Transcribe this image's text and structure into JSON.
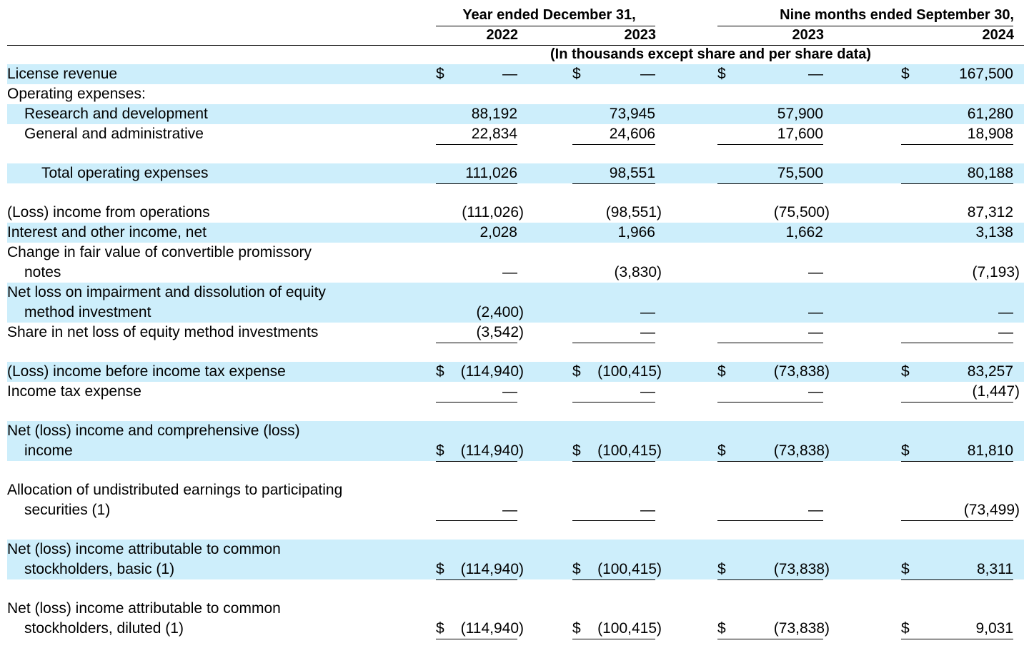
{
  "header": {
    "year_group": "Year ended December 31,",
    "nine_group": "Nine months ended September 30,",
    "years": [
      "2022",
      "2023",
      "2023",
      "2024"
    ],
    "units": "(In thousands except share and per share data)"
  },
  "rows": [
    {
      "lines": [
        "License revenue"
      ],
      "values": [
        [
          "$",
          "—"
        ],
        [
          "$",
          "—"
        ],
        [
          "$",
          "—"
        ],
        [
          "$",
          "167,500"
        ]
      ]
    },
    {
      "lines": [
        "Operating expenses:"
      ],
      "values": [
        [
          "",
          ""
        ],
        [
          "",
          ""
        ],
        [
          "",
          ""
        ],
        [
          "",
          ""
        ]
      ]
    },
    {
      "lines": [
        "Research and development"
      ],
      "values": [
        [
          "",
          "88,192"
        ],
        [
          "",
          "73,945"
        ],
        [
          "",
          "57,900"
        ],
        [
          "",
          "61,280"
        ]
      ]
    },
    {
      "lines": [
        "General and administrative"
      ],
      "values": [
        [
          "",
          "22,834"
        ],
        [
          "",
          "24,606"
        ],
        [
          "",
          "17,600"
        ],
        [
          "",
          "18,908"
        ]
      ]
    },
    {
      "lines": [
        "Total operating expenses"
      ],
      "values": [
        [
          "",
          "111,026"
        ],
        [
          "",
          "98,551"
        ],
        [
          "",
          "75,500"
        ],
        [
          "",
          "80,188"
        ]
      ]
    },
    {
      "lines": [
        "(Loss) income from operations"
      ],
      "values": [
        [
          "",
          "(111,026)"
        ],
        [
          "",
          "(98,551)"
        ],
        [
          "",
          "(75,500)"
        ],
        [
          "",
          "87,312"
        ]
      ]
    },
    {
      "lines": [
        "Interest and other income, net"
      ],
      "values": [
        [
          "",
          "2,028"
        ],
        [
          "",
          "1,966"
        ],
        [
          "",
          "1,662"
        ],
        [
          "",
          "3,138"
        ]
      ]
    },
    {
      "lines": [
        "Change in fair value of convertible promissory",
        "notes"
      ],
      "values": [
        [
          "",
          "—"
        ],
        [
          "",
          "(3,830)"
        ],
        [
          "",
          "—"
        ],
        [
          "",
          "(7,193)"
        ]
      ]
    },
    {
      "lines": [
        "Net loss on impairment and dissolution of equity",
        "method investment"
      ],
      "values": [
        [
          "",
          "(2,400)"
        ],
        [
          "",
          "—"
        ],
        [
          "",
          "—"
        ],
        [
          "",
          "—"
        ]
      ]
    },
    {
      "lines": [
        "Share in net loss of equity method investments"
      ],
      "values": [
        [
          "",
          "(3,542)"
        ],
        [
          "",
          "—"
        ],
        [
          "",
          "—"
        ],
        [
          "",
          "—"
        ]
      ]
    },
    {
      "lines": [
        "(Loss) income before income tax expense"
      ],
      "values": [
        [
          "$",
          "(114,940)"
        ],
        [
          "$",
          "(100,415)"
        ],
        [
          "$",
          "(73,838)"
        ],
        [
          "$",
          "83,257"
        ]
      ]
    },
    {
      "lines": [
        "Income tax expense"
      ],
      "values": [
        [
          "",
          "—"
        ],
        [
          "",
          "—"
        ],
        [
          "",
          "—"
        ],
        [
          "",
          "(1,447)"
        ]
      ]
    },
    {
      "lines": [
        "Net (loss) income and comprehensive (loss)",
        "income"
      ],
      "values": [
        [
          "$",
          "(114,940)"
        ],
        [
          "$",
          "(100,415)"
        ],
        [
          "$",
          "(73,838)"
        ],
        [
          "$",
          "81,810"
        ]
      ]
    },
    {
      "lines": [
        "Allocation of undistributed earnings to participating",
        "securities (1)"
      ],
      "values": [
        [
          "",
          "—"
        ],
        [
          "",
          "—"
        ],
        [
          "",
          "—"
        ],
        [
          "",
          "(73,499)"
        ]
      ]
    },
    {
      "lines": [
        "Net (loss) income attributable to common",
        "stockholders, basic (1)"
      ],
      "values": [
        [
          "$",
          "(114,940)"
        ],
        [
          "$",
          "(100,415)"
        ],
        [
          "$",
          "(73,838)"
        ],
        [
          "$",
          "8,311"
        ]
      ]
    },
    {
      "lines": [
        "Net (loss) income attributable to common",
        "stockholders, diluted (1)"
      ],
      "values": [
        [
          "$",
          "(114,940)"
        ],
        [
          "$",
          "(100,415)"
        ],
        [
          "$",
          "(73,838)"
        ],
        [
          "$",
          "9,031"
        ]
      ]
    }
  ]
}
